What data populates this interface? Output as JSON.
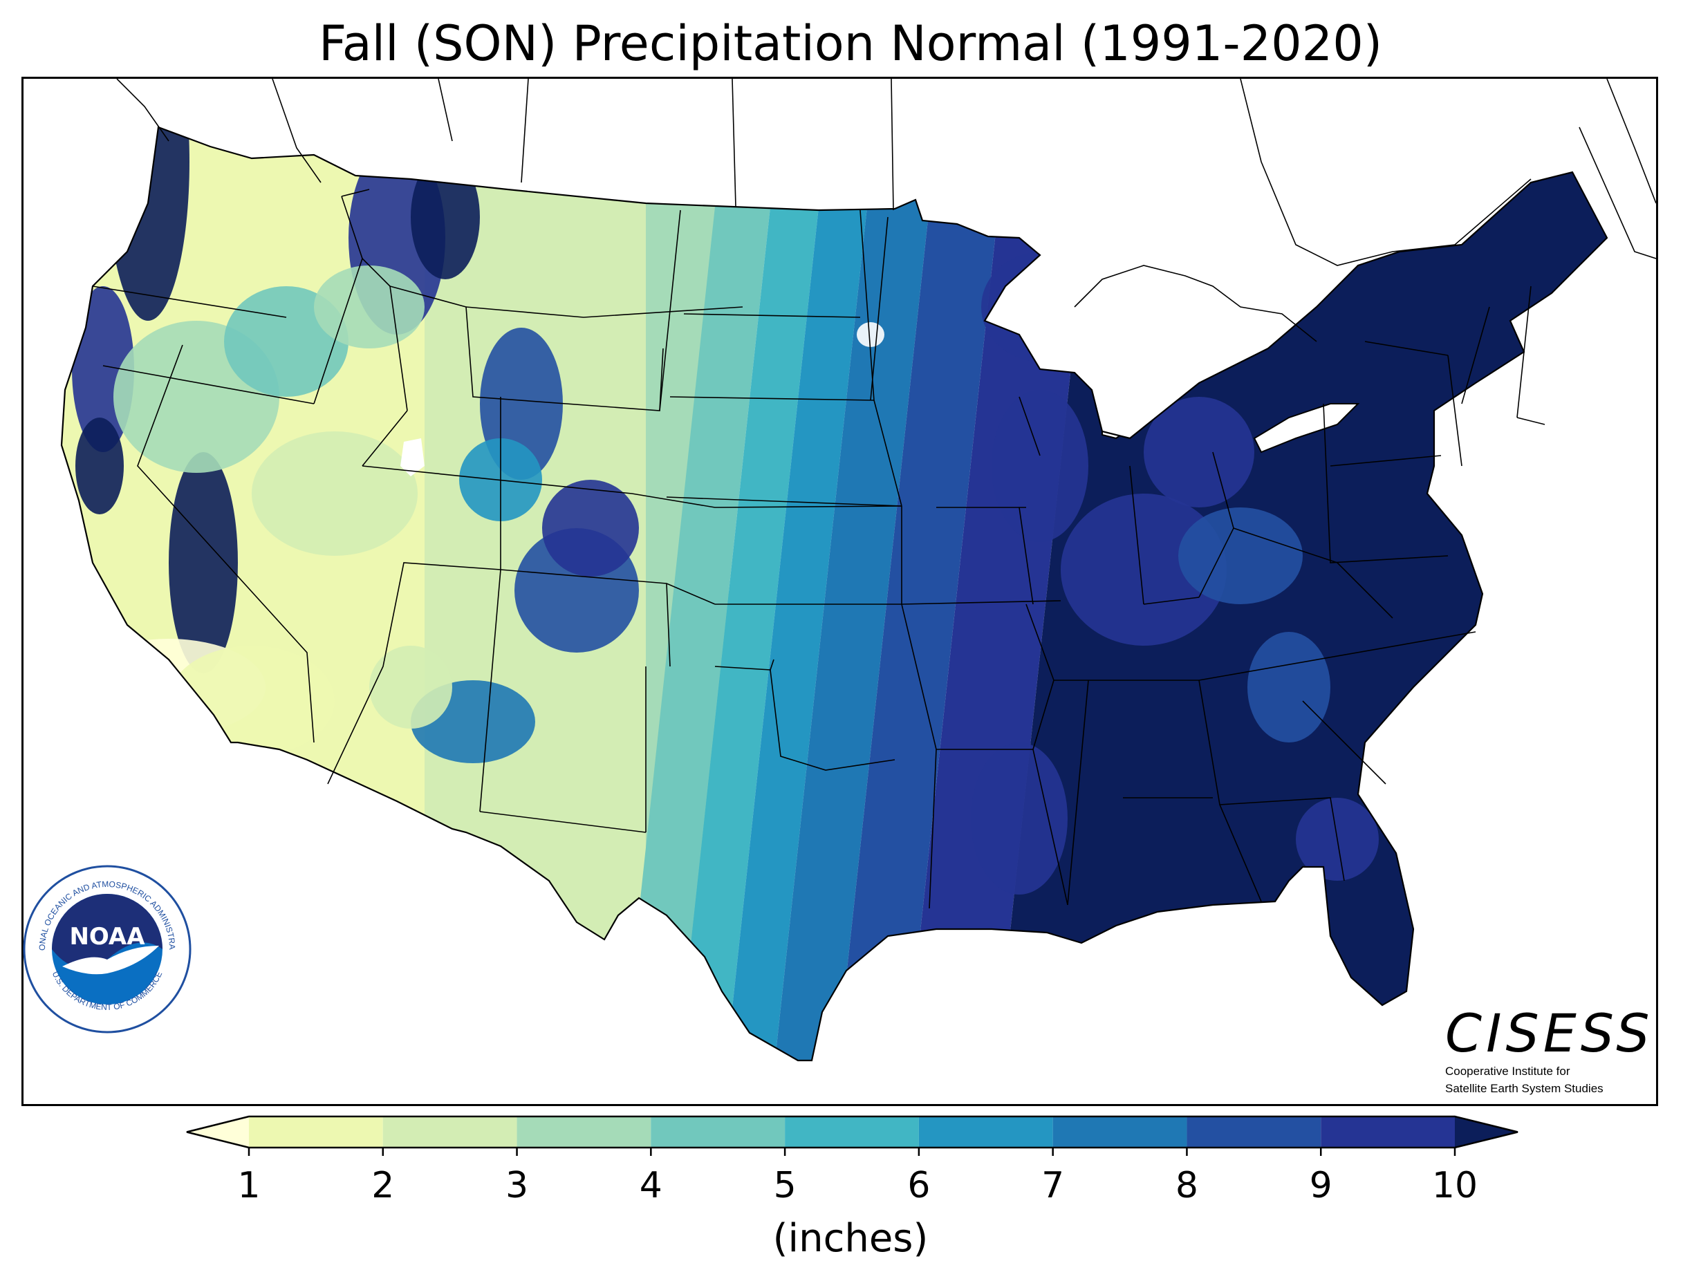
{
  "title": "Fall (SON) Precipitation Normal (1991-2020)",
  "colorbar": {
    "units_label": "(inches)",
    "ticks": [
      "1",
      "2",
      "3",
      "4",
      "5",
      "6",
      "7",
      "8",
      "9",
      "10"
    ],
    "bins": [
      {
        "range": "<1",
        "color": "#ffffd9"
      },
      {
        "range": "1-2",
        "color": "#edf8b1"
      },
      {
        "range": "2-3",
        "color": "#d3edb4"
      },
      {
        "range": "3-4",
        "color": "#a5dbb8"
      },
      {
        "range": "4-5",
        "color": "#71c8bd"
      },
      {
        "range": "5-6",
        "color": "#41b6c4"
      },
      {
        "range": "6-7",
        "color": "#2496c2"
      },
      {
        "range": "7-8",
        "color": "#1f78b4"
      },
      {
        "range": "8-9",
        "color": "#2350a2"
      },
      {
        "range": "9-10",
        "color": "#253494"
      },
      {
        "range": ">10",
        "color": "#0c1e5a"
      }
    ]
  },
  "logos": {
    "noaa": {
      "center_text": "NOAA",
      "ring_top": "NATIONAL OCEANIC AND ATMOSPHERIC ADMINISTRATION",
      "ring_bottom": "U.S. DEPARTMENT OF COMMERCE"
    },
    "cisess": {
      "name": "CISESS",
      "line1": "Cooperative Institute for",
      "line2": "Satellite Earth System Studies"
    }
  }
}
